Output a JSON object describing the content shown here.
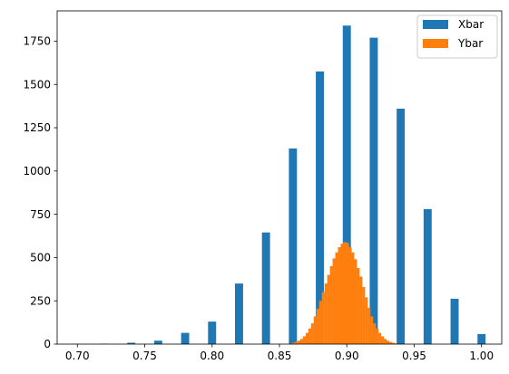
{
  "chart_data": {
    "type": "bar",
    "title": "",
    "xlabel": "",
    "ylabel": "",
    "xlim": [
      0.685,
      1.015
    ],
    "ylim": [
      0,
      1925
    ],
    "grid": false,
    "legend_position": "top-right",
    "x_ticks": [
      0.7,
      0.75,
      0.8,
      0.85,
      0.9,
      0.95,
      1.0
    ],
    "x_tick_labels": [
      "0.70",
      "0.75",
      "0.80",
      "0.85",
      "0.90",
      "0.95",
      "1.00"
    ],
    "y_ticks": [
      0,
      250,
      500,
      750,
      1000,
      1250,
      1500,
      1750
    ],
    "y_tick_labels": [
      "0",
      "250",
      "500",
      "750",
      "1000",
      "1250",
      "1500",
      "1750"
    ],
    "series": [
      {
        "name": "Xbar",
        "color": "#1f77b4",
        "bin_width": 0.006,
        "x": [
          0.7,
          0.72,
          0.74,
          0.76,
          0.78,
          0.8,
          0.82,
          0.84,
          0.86,
          0.88,
          0.9,
          0.92,
          0.94,
          0.96,
          0.98,
          1.0
        ],
        "values": [
          1,
          2,
          8,
          20,
          65,
          130,
          350,
          645,
          1130,
          1575,
          1840,
          1770,
          1360,
          780,
          262,
          58
        ]
      },
      {
        "name": "Ybar",
        "color": "#ff7f0e",
        "bin_width": 0.0021,
        "x": [
          0.8585,
          0.8605,
          0.8625,
          0.8645,
          0.8665,
          0.8685,
          0.8705,
          0.8725,
          0.8745,
          0.8765,
          0.8785,
          0.8805,
          0.8825,
          0.8845,
          0.8865,
          0.8885,
          0.8905,
          0.8925,
          0.8945,
          0.8965,
          0.8985,
          0.9005,
          0.9025,
          0.9045,
          0.9065,
          0.9085,
          0.9105,
          0.9125,
          0.9145,
          0.9165,
          0.9185,
          0.9205,
          0.9225,
          0.9245,
          0.9265,
          0.9285,
          0.9305,
          0.9325,
          0.9345,
          0.9365,
          0.9385
        ],
        "values": [
          4,
          8,
          13,
          20,
          30,
          45,
          65,
          90,
          120,
          160,
          205,
          250,
          300,
          350,
          400,
          450,
          495,
          530,
          560,
          580,
          590,
          585,
          560,
          530,
          490,
          440,
          390,
          330,
          270,
          210,
          160,
          120,
          90,
          65,
          45,
          30,
          20,
          12,
          8,
          4,
          2
        ]
      }
    ]
  }
}
